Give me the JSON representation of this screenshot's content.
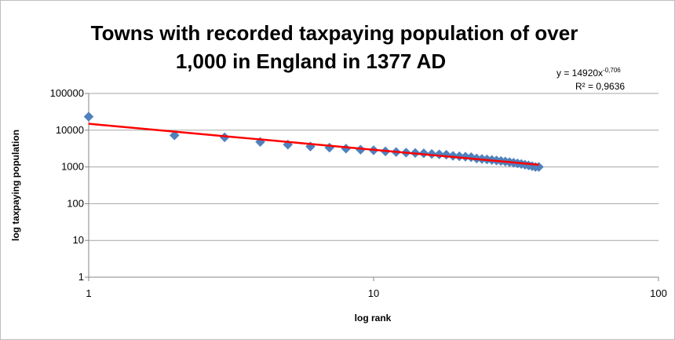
{
  "chart_data": {
    "type": "scatter",
    "title_lines": [
      "Towns with recorded taxpaying population of over",
      "1,000  in England in 1377 AD"
    ],
    "xlabel": "log rank",
    "ylabel": "log taxpaying population",
    "x_scale": "log",
    "y_scale": "log",
    "xlim": [
      1,
      100
    ],
    "ylim": [
      1,
      100000
    ],
    "x_ticks": [
      "1",
      "10",
      "100"
    ],
    "y_ticks": [
      "1",
      "10",
      "100",
      "1000",
      "10000",
      "100000"
    ],
    "grid": "horizontal",
    "legend": "none",
    "series": [
      {
        "color": "#4F81BD",
        "marker": "diamond",
        "x": [
          1,
          2,
          3,
          4,
          5,
          6,
          7,
          8,
          9,
          10,
          11,
          12,
          13,
          14,
          15,
          16,
          17,
          18,
          19,
          20,
          21,
          22,
          23,
          24,
          25,
          26,
          27,
          28,
          29,
          30,
          31,
          32,
          33,
          34,
          35,
          36,
          37,
          38
        ],
        "y": [
          23300,
          7250,
          6400,
          4800,
          4050,
          3600,
          3350,
          3150,
          2950,
          2850,
          2650,
          2550,
          2450,
          2400,
          2350,
          2250,
          2200,
          2150,
          2000,
          1950,
          1900,
          1850,
          1700,
          1650,
          1600,
          1550,
          1500,
          1450,
          1400,
          1350,
          1300,
          1250,
          1200,
          1150,
          1100,
          1050,
          1000,
          1000
        ]
      }
    ],
    "trendline": {
      "type": "power",
      "a": 14920,
      "b": -0.706,
      "color": "#FF0000",
      "equation_text": "y = 14920x",
      "equation_exponent": "-0,706",
      "r2_text": "R² = 0,9636"
    }
  }
}
